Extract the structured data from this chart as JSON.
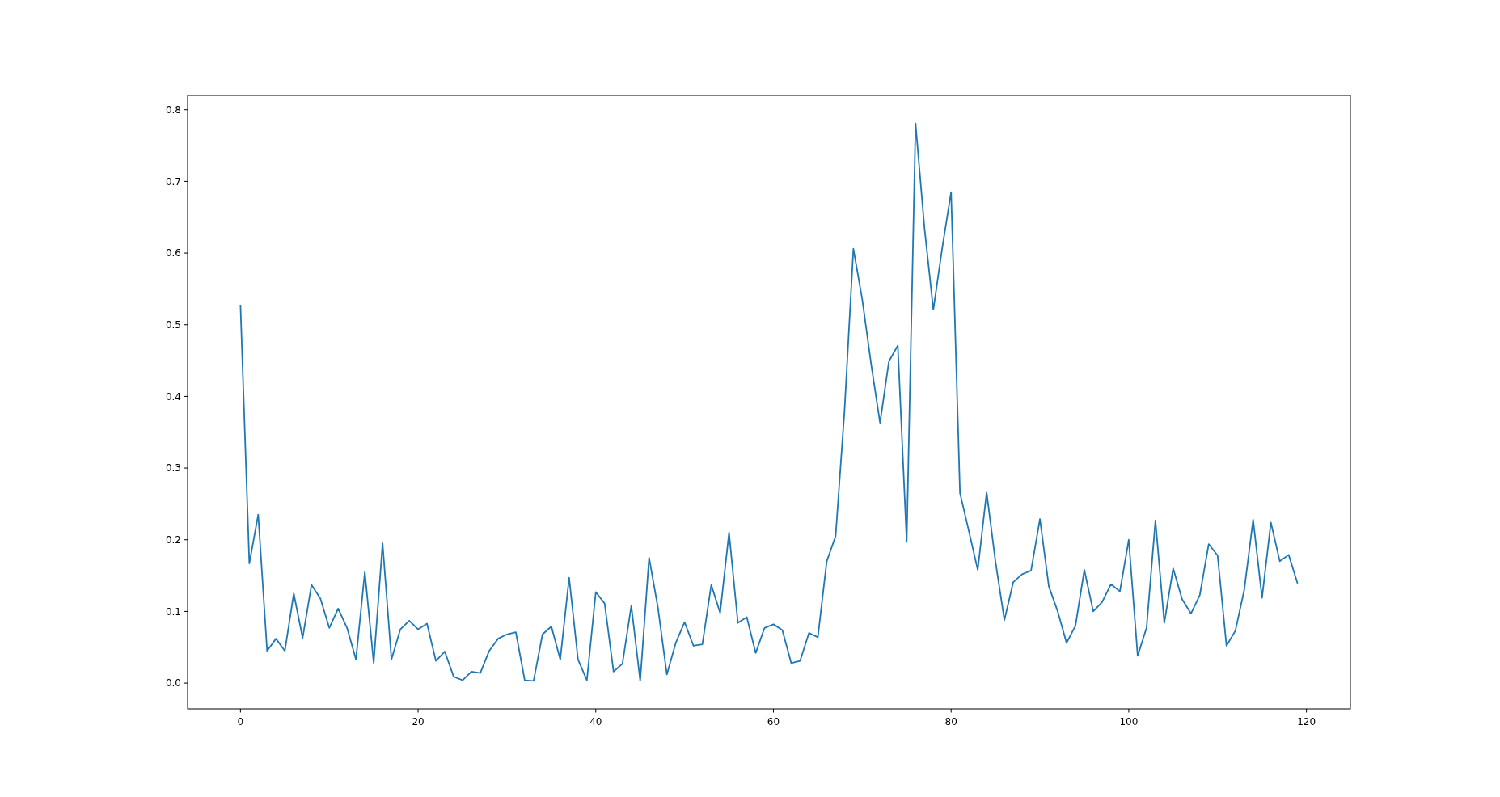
{
  "chart_data": {
    "type": "line",
    "x": [
      0,
      1,
      2,
      3,
      4,
      5,
      6,
      7,
      8,
      9,
      10,
      11,
      12,
      13,
      14,
      15,
      16,
      17,
      18,
      19,
      20,
      21,
      22,
      23,
      24,
      25,
      26,
      27,
      28,
      29,
      30,
      31,
      32,
      33,
      34,
      35,
      36,
      37,
      38,
      39,
      40,
      41,
      42,
      43,
      44,
      45,
      46,
      47,
      48,
      49,
      50,
      51,
      52,
      53,
      54,
      55,
      56,
      57,
      58,
      59,
      60,
      61,
      62,
      63,
      64,
      65,
      66,
      67,
      68,
      69,
      70,
      71,
      72,
      73,
      74,
      75,
      76,
      77,
      78,
      79,
      80,
      81,
      82,
      83,
      84,
      85,
      86,
      87,
      88,
      89,
      90,
      91,
      92,
      93,
      94,
      95,
      96,
      97,
      98,
      99,
      100,
      101,
      102,
      103,
      104,
      105,
      106,
      107,
      108,
      109,
      110,
      111,
      112,
      113,
      114,
      115,
      116,
      117,
      118,
      119
    ],
    "series": [
      {
        "color": "#1f77b4",
        "values": [
          0.528,
          0.167,
          0.235,
          0.045,
          0.062,
          0.045,
          0.125,
          0.063,
          0.137,
          0.118,
          0.077,
          0.104,
          0.077,
          0.033,
          0.155,
          0.028,
          0.195,
          0.033,
          0.075,
          0.087,
          0.075,
          0.083,
          0.031,
          0.044,
          0.009,
          0.004,
          0.016,
          0.014,
          0.045,
          0.062,
          0.068,
          0.071,
          0.004,
          0.003,
          0.068,
          0.079,
          0.033,
          0.147,
          0.033,
          0.004,
          0.127,
          0.111,
          0.016,
          0.027,
          0.108,
          0.003,
          0.175,
          0.105,
          0.012,
          0.056,
          0.085,
          0.052,
          0.054,
          0.137,
          0.098,
          0.21,
          0.084,
          0.092,
          0.042,
          0.077,
          0.082,
          0.074,
          0.028,
          0.031,
          0.07,
          0.064,
          0.17,
          0.205,
          0.38,
          0.606,
          0.535,
          0.445,
          0.363,
          0.449,
          0.471,
          0.197,
          0.781,
          0.635,
          0.521,
          0.607,
          0.685,
          0.265,
          0.212,
          0.158,
          0.266,
          0.169,
          0.088,
          0.141,
          0.152,
          0.157,
          0.229,
          0.135,
          0.1,
          0.056,
          0.08,
          0.158,
          0.1,
          0.113,
          0.138,
          0.128,
          0.2,
          0.038,
          0.077,
          0.227,
          0.084,
          0.16,
          0.117,
          0.097,
          0.123,
          0.194,
          0.178,
          0.052,
          0.073,
          0.13,
          0.228,
          0.119,
          0.224,
          0.17,
          0.179,
          0.139
        ]
      }
    ],
    "xlim": [
      -5.95,
      124.95
    ],
    "ylim": [
      -0.036,
      0.82
    ],
    "xticks": [
      0,
      20,
      40,
      60,
      80,
      100,
      120
    ],
    "yticks": [
      {
        "value": 0,
        "label": "0.0"
      },
      {
        "value": 0.1,
        "label": "0.1"
      },
      {
        "value": 0.2,
        "label": "0.2"
      },
      {
        "value": 0.3,
        "label": "0.3"
      },
      {
        "value": 0.4,
        "label": "0.4"
      },
      {
        "value": 0.5,
        "label": "0.5"
      },
      {
        "value": 0.6,
        "label": "0.6"
      },
      {
        "value": 0.7,
        "label": "0.7"
      },
      {
        "value": 0.8,
        "label": "0.8"
      }
    ],
    "grid": false
  }
}
